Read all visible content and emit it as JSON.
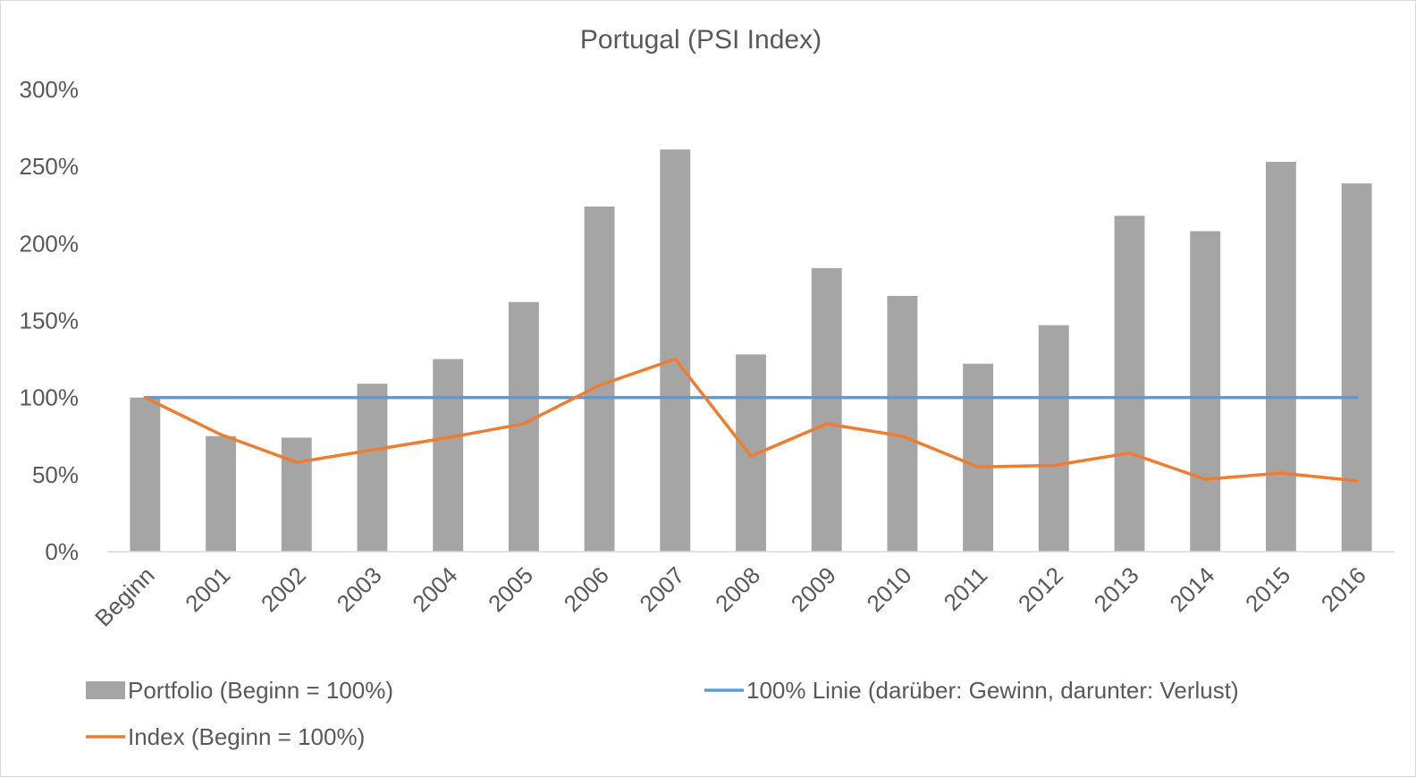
{
  "chart_data": {
    "type": "bar",
    "title": "Portugal (PSI Index)",
    "categories": [
      "Beginn",
      "2001",
      "2002",
      "2003",
      "2004",
      "2005",
      "2006",
      "2007",
      "2008",
      "2009",
      "2010",
      "2011",
      "2012",
      "2013",
      "2014",
      "2015",
      "2016"
    ],
    "y_tick_labels": [
      "0%",
      "50%",
      "100%",
      "150%",
      "200%",
      "250%",
      "300%"
    ],
    "ylim": [
      0,
      300
    ],
    "grid": false,
    "legend_position": "bottom",
    "series": [
      {
        "name": "Portfolio (Beginn = 100%)",
        "type": "bar",
        "color": "#a5a5a5",
        "values": [
          100,
          75,
          74,
          109,
          125,
          162,
          224,
          261,
          128,
          184,
          166,
          122,
          147,
          218,
          208,
          253,
          239
        ]
      },
      {
        "name": "100% Linie (darüber: Gewinn, darunter: Verlust)",
        "type": "line",
        "color": "#5b9bd5",
        "values": [
          100,
          100,
          100,
          100,
          100,
          100,
          100,
          100,
          100,
          100,
          100,
          100,
          100,
          100,
          100,
          100,
          100
        ]
      },
      {
        "name": "Index (Beginn = 100%)",
        "type": "line",
        "color": "#ed7d31",
        "values": [
          100,
          76,
          58,
          66,
          74,
          83,
          108,
          125,
          62,
          83,
          75,
          55,
          56,
          64,
          47,
          51,
          46
        ]
      }
    ]
  }
}
